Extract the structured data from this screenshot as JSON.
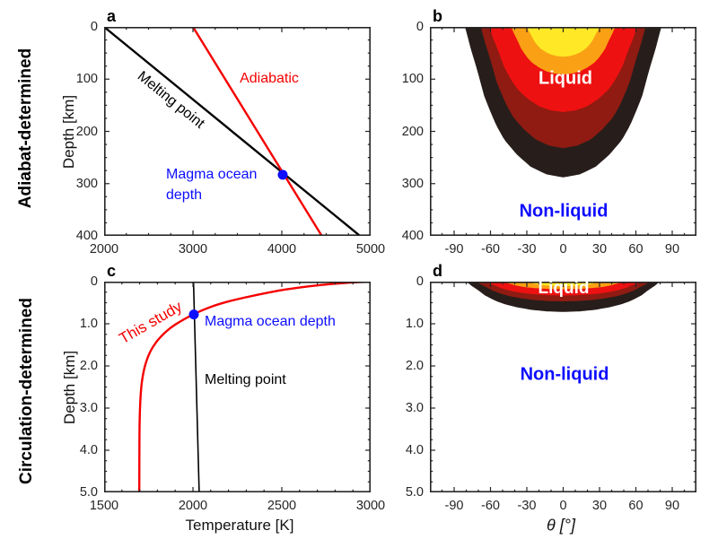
{
  "figure": {
    "background": "#ffffff"
  },
  "row_labels": {
    "top": "Adiabat-determined",
    "bottom": "Circulation-determined"
  },
  "panel_letters": {
    "a": "a",
    "b": "b",
    "c": "c",
    "d": "d"
  },
  "axis_titles": {
    "depth_a": "Depth [km]",
    "depth_c": "Depth [km]",
    "temperature_c": "Temperature [K]",
    "theta_d": "θ [°]"
  },
  "annotations": {
    "a": {
      "melting": "Melting point",
      "adiabatic": "Adiabatic",
      "magma": "Magma ocean\ndepth"
    },
    "b": {
      "liquid": "Liquid",
      "nonliquid": "Non-liquid"
    },
    "c": {
      "this_study": "This study",
      "magma": "Magma ocean depth",
      "melting": "Melting point"
    },
    "d": {
      "liquid": "Liquid",
      "nonliquid": "Non-liquid"
    }
  },
  "colors": {
    "red_line": "#f50000",
    "blue": "#0d0dff",
    "axis": "#262626",
    "liquid_text": "#ffffff",
    "nonliquid_text": "#0d0dff",
    "contour_black": "#271e1b",
    "contour_darkred": "#8f1b12",
    "contour_red": "#ee1111",
    "contour_orange": "#faa014",
    "contour_yellow": "#ffe926"
  },
  "contour_profile": [
    [
      0,
      1
    ],
    [
      0.15,
      0.94
    ],
    [
      0.3,
      0.87
    ],
    [
      0.45,
      0.81
    ],
    [
      0.55,
      0.75
    ],
    [
      0.65,
      0.685
    ],
    [
      0.75,
      0.6
    ],
    [
      0.85,
      0.47
    ],
    [
      0.93,
      0.33
    ],
    [
      0.98,
      0.17
    ],
    [
      1,
      0
    ]
  ],
  "chart_data": [
    {
      "id": "a",
      "type": "line",
      "xlabel": "",
      "ylabel": "Depth [km]",
      "xlim": [
        2000,
        5000
      ],
      "ylim": [
        0,
        400
      ],
      "y_increases_downward": true,
      "x_tick_values": [
        2000,
        3000,
        4000,
        5000
      ],
      "x_tick_labels": [
        "2000",
        "3000",
        "4000",
        "5000"
      ],
      "y_tick_values": [
        0,
        100,
        200,
        300,
        400
      ],
      "y_tick_labels": [
        "0",
        "100",
        "200",
        "300",
        "400"
      ],
      "x_minor_step": 250,
      "y_minor_step": 25,
      "series": [
        {
          "name": "Melting point",
          "color": "#000000",
          "lw": 2.4,
          "points": [
            [
              2000,
              0
            ],
            [
              4880,
              400
            ]
          ]
        },
        {
          "name": "Adiabatic",
          "color": "#f50000",
          "lw": 2.4,
          "points": [
            [
              3000,
              0
            ],
            [
              4450,
              400
            ]
          ]
        }
      ],
      "marker": {
        "name": "Magma ocean depth",
        "x": 4010,
        "y": 283,
        "r": 5.5,
        "color": "#0d0dff"
      }
    },
    {
      "id": "b",
      "type": "contour-filled",
      "xlabel": "",
      "ylabel": "",
      "xlim": [
        -110,
        110
      ],
      "ylim": [
        0,
        400
      ],
      "x_tick_values": [
        -90,
        -60,
        -30,
        0,
        30,
        60,
        90
      ],
      "x_tick_labels": [
        "-90",
        "-60",
        "-30",
        "0",
        "30",
        "60",
        "90"
      ],
      "y_tick_values": [
        0,
        100,
        200,
        300,
        400
      ],
      "y_tick_labels": [
        "0",
        "100",
        "200",
        "300",
        "400"
      ],
      "x_minor_step": 10,
      "y_minor_step": 25,
      "contour_levels": [
        {
          "color": "#271e1b",
          "half_width_deg": 81,
          "max_depth": 288
        },
        {
          "color": "#8f1b12",
          "half_width_deg": 68,
          "max_depth": 232
        },
        {
          "color": "#ee1111",
          "half_width_deg": 61,
          "max_depth": 163
        },
        {
          "color": "#faa014",
          "half_width_deg": 43,
          "max_depth": 91
        },
        {
          "color": "#ffe926",
          "half_width_deg": 30,
          "max_depth": 57
        }
      ],
      "regions": [
        {
          "label": "Liquid",
          "theta": 0,
          "depth": 100
        },
        {
          "label": "Non-liquid",
          "theta": 0,
          "depth": 353
        }
      ]
    },
    {
      "id": "c",
      "type": "line",
      "xlabel": "Temperature [K]",
      "ylabel": "Depth [km]",
      "xlim": [
        1500,
        3000
      ],
      "ylim": [
        0,
        5
      ],
      "y_increases_downward": true,
      "x_tick_values": [
        1500,
        2000,
        2500,
        3000
      ],
      "x_tick_labels": [
        "1500",
        "2000",
        "2500",
        "3000"
      ],
      "y_tick_values": [
        0,
        1,
        2,
        3,
        4,
        5
      ],
      "y_tick_labels": [
        "0",
        "1.0",
        "2.0",
        "3.0",
        "4.0",
        "5.0"
      ],
      "x_minor_step": 100,
      "y_minor_step": 0.25,
      "series": [
        {
          "name": "This study",
          "color": "#f50000",
          "lw": 2.4,
          "smooth": true,
          "points": [
            [
              3000,
              0.0
            ],
            [
              2900,
              0.02
            ],
            [
              2800,
              0.05
            ],
            [
              2700,
              0.09
            ],
            [
              2600,
              0.14
            ],
            [
              2500,
              0.2
            ],
            [
              2400,
              0.28
            ],
            [
              2300,
              0.37
            ],
            [
              2200,
              0.47
            ],
            [
              2100,
              0.6
            ],
            [
              2000,
              0.78
            ],
            [
              1900,
              1.02
            ],
            [
              1850,
              1.18
            ],
            [
              1800,
              1.4
            ],
            [
              1760,
              1.66
            ],
            [
              1730,
              2.0
            ],
            [
              1712,
              2.4
            ],
            [
              1703,
              2.9
            ],
            [
              1699,
              3.6
            ],
            [
              1698,
              5.0
            ]
          ]
        },
        {
          "name": "Melting point",
          "color": "#000000",
          "lw": 1.6,
          "points": [
            [
              2003,
              0
            ],
            [
              2035,
              5
            ]
          ]
        }
      ],
      "marker": {
        "name": "Magma ocean depth",
        "x": 2005,
        "y": 0.78,
        "r": 5.5,
        "color": "#0d0dff"
      }
    },
    {
      "id": "d",
      "type": "contour-filled",
      "xlabel": "θ [°]",
      "ylabel": "",
      "xlim": [
        -110,
        110
      ],
      "ylim": [
        0,
        5
      ],
      "x_tick_values": [
        -90,
        -60,
        -30,
        0,
        30,
        60,
        90
      ],
      "x_tick_labels": [
        "-90",
        "-60",
        "-30",
        "0",
        "30",
        "60",
        "90"
      ],
      "y_tick_values": [
        0,
        1,
        2,
        3,
        4,
        5
      ],
      "y_tick_labels": [
        "0",
        "1.0",
        "2.0",
        "3.0",
        "4.0",
        "5.0"
      ],
      "x_minor_step": 10,
      "y_minor_step": 0.25,
      "contour_levels": [
        {
          "color": "#271e1b",
          "half_width_deg": 80,
          "max_depth": 0.72
        },
        {
          "color": "#8f1b12",
          "half_width_deg": 72,
          "max_depth": 0.47
        },
        {
          "color": "#ee1111",
          "half_width_deg": 64,
          "max_depth": 0.33
        },
        {
          "color": "#faa014",
          "half_width_deg": 50,
          "max_depth": 0.18
        },
        {
          "color": "#ffe926",
          "half_width_deg": 30,
          "max_depth": 0.105
        }
      ],
      "regions": [
        {
          "label": "Liquid",
          "theta": 0,
          "depth": 0.15
        },
        {
          "label": "Non-liquid",
          "theta": 0,
          "depth": 2.2
        }
      ]
    }
  ]
}
